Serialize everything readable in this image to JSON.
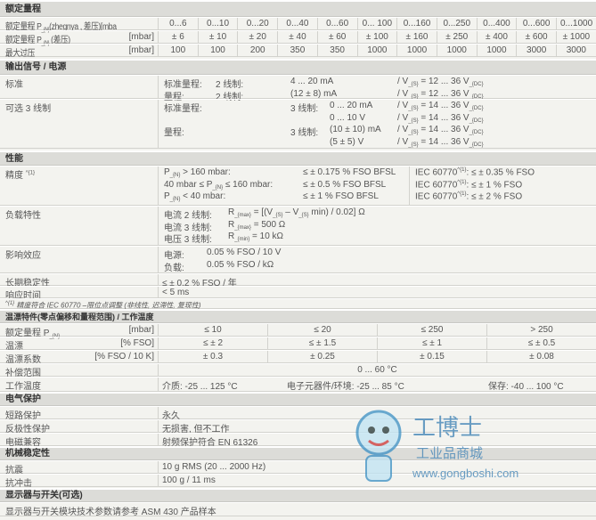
{
  "rated_range": {
    "title": "额定量程",
    "rows": [
      {
        "label": "额定量程 P_{N}(zhegnya , 差压)[mba",
        "unit": "",
        "values": [
          "0...6",
          "0...10",
          "0...20",
          "0...40",
          "0...60",
          "0... 100",
          "0...160",
          "0...250",
          "0...400",
          "0...600",
          "0...1000"
        ]
      },
      {
        "label": "额定量程 P_{N} (差压)",
        "unit": "[mbar]",
        "values": [
          "± 6",
          "± 10",
          "± 20",
          "± 40",
          "± 60",
          "± 100",
          "± 160",
          "± 250",
          "± 400",
          "± 600",
          "± 1000"
        ]
      },
      {
        "label": "最大过压",
        "unit": "[mbar]",
        "values": [
          "100",
          "100",
          "200",
          "350",
          "350",
          "1000",
          "1000",
          "1000",
          "1000",
          "3000",
          "3000"
        ]
      }
    ]
  },
  "output": {
    "title": "输出信号 / 电源",
    "standard": {
      "label": "标准",
      "lines": [
        {
          "a": "标准量程:",
          "b": "2 线制:",
          "c": "4 ... 20 mA",
          "d": "/  V_{S} = 12 ... 36 V_{DC}"
        },
        {
          "a": "量程:",
          "b": "2 线制:",
          "c": "(12 ± 8) mA",
          "d": "/  V_{S} = 12 ... 36 V_{DC}"
        }
      ]
    },
    "optional": {
      "label": "可选 3 线制",
      "lines": [
        {
          "a": "标准量程:",
          "b": "3 线制:",
          "c": "0 ... 20 mA",
          "d": "/  V_{S} = 14 ... 36 V_{DC}"
        },
        {
          "a": "",
          "b": "",
          "c": "0 ... 10 V",
          "d": "/  V_{S} = 14 ... 36 V_{DC}"
        },
        {
          "a": "量程:",
          "b": "3 线制:",
          "c": "(10 ± 10) mA",
          "d": "/  V_{S} = 14 ... 36 V_{DC}"
        },
        {
          "a": "",
          "b": "",
          "c": "(5 ± 5) V",
          "d": "/  V_{S} = 14 ... 36 V_{DC}"
        }
      ]
    }
  },
  "performance": {
    "title": "性能",
    "accuracy": {
      "label": "精度 ^{1}",
      "lines": [
        {
          "a": "P_{N} > 160 mbar:",
          "b": "≤ ± 0.175 % FSO BFSL",
          "c": "IEC 60770^{1}:  ≤ ± 0.35 % FSO"
        },
        {
          "a": "40 mbar ≤ P_{N} ≤ 160 mbar:",
          "b": "≤ ± 0.5 % FSO BFSL",
          "c": "IEC 60770^{1}:  ≤ ± 1 % FSO"
        },
        {
          "a": "P_{N} < 40 mbar:",
          "b": "≤ ± 1 % FSO BFSL",
          "c": "IEC 60770^{1}:  ≤ ± 2 % FSO"
        }
      ]
    },
    "load": {
      "label": "负载特性",
      "lines": [
        {
          "a": "电流  2 线制:",
          "b": "R_{max} = [(V_{S} – V_{S} min) / 0.02] Ω"
        },
        {
          "a": "电流  3 线制:",
          "b": "R_{max} = 500 Ω"
        },
        {
          "a": "电压  3 线制:",
          "b": "R_{min} = 10 kΩ"
        }
      ]
    },
    "influence": {
      "label": "影响效应",
      "lines": [
        {
          "a": "电源:",
          "b": "0.05 % FSO / 10 V"
        },
        {
          "a": "负载:",
          "b": "0.05 % FSO / kΩ"
        }
      ]
    },
    "stability": {
      "label": "长期稳定性",
      "value": "≤ ± 0.2 % FSO /  年"
    },
    "response": {
      "label": "响应时间",
      "value": "< 5 ms"
    },
    "footnote": "^{1} 精度符合 IEC 60770 –限位点调整 (非线性, 迟滞性, 复现性)"
  },
  "thermal": {
    "title": "温漂特件(零点偏移和量程范围) / 工作温度",
    "rows": [
      {
        "label": "额定量程  P_{N}",
        "unit": "[mbar]",
        "values": [
          "≤ 10",
          "≤ 20",
          "≤ 250",
          "> 250"
        ]
      },
      {
        "label": "温漂",
        "unit": "[% FSO]",
        "values": [
          "≤ ± 2",
          "≤ ± 1.5",
          "≤ ± 1",
          "≤ ± 0.5"
        ]
      },
      {
        "label": "温漂系数",
        "unit": "[% FSO / 10 K]",
        "values": [
          "± 0.3",
          "± 0.25",
          "± 0.15",
          "± 0.08"
        ]
      }
    ],
    "comp": {
      "label": "补偿范围",
      "value": "0 ... 60 °C"
    },
    "op": {
      "label": "工作温度",
      "media": "介质: -25 ... 125 °C",
      "elec": "电子元器件/环境: -25 ... 85 °C",
      "storage": "保存: -40 ... 100 °C"
    }
  },
  "electrical": {
    "title": "电气保护",
    "rows": [
      {
        "label": "短路保护",
        "value": "永久"
      },
      {
        "label": "反极性保护",
        "value": "无损害, 但不工作"
      },
      {
        "label": "电磁兼容",
        "value": "射频保护符合  EN 61326"
      }
    ]
  },
  "mechanical": {
    "title": "机械稳定性",
    "rows": [
      {
        "label": "抗震",
        "value": "10 g RMS (20 ... 2000 Hz)"
      },
      {
        "label": "抗冲击",
        "value": "100 g / 11 ms"
      }
    ]
  },
  "display": {
    "title": "显示器与开关(可选)",
    "value": "显示器与开关模块技术参数请参考 ASM 430 产品样本"
  },
  "watermark": {
    "name": "工博士",
    "sub": "工业品商城",
    "url": "www.gongboshi.com"
  }
}
